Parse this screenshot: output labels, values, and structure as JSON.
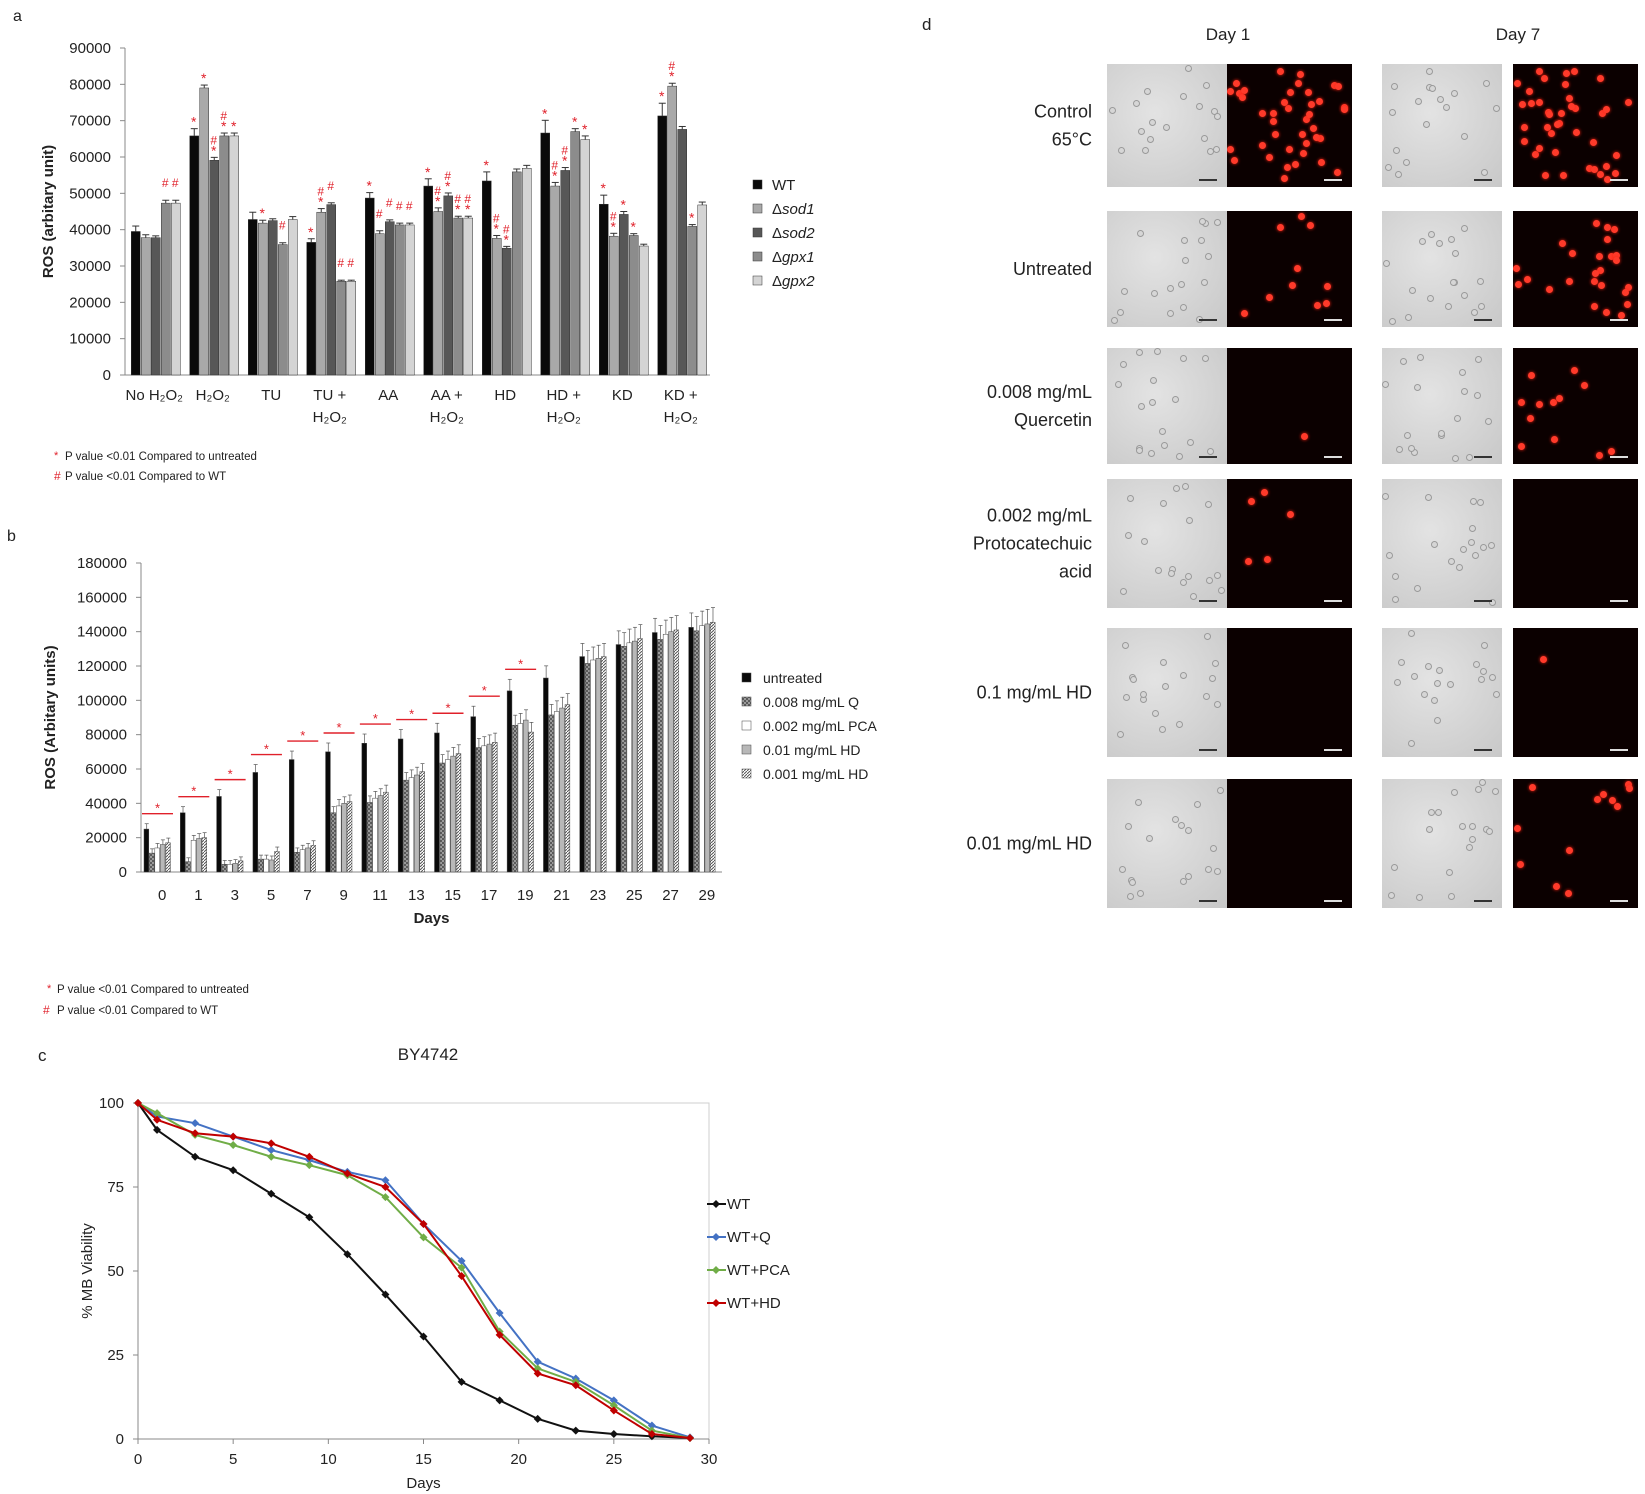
{
  "panels": {
    "a": {
      "letter": "a",
      "ylabel": "ROS (arbitary unit)",
      "yticks": [
        "0",
        "10000",
        "20000",
        "30000",
        "40000",
        "50000",
        "60000",
        "70000",
        "80000",
        "90000"
      ],
      "ylim": [
        0,
        90000
      ],
      "groups": [
        "No H₂O₂",
        "H₂O₂",
        "TU",
        "TU +\nH₂O₂",
        "AA",
        "AA +\nH₂O₂",
        "HD",
        "HD +\nH₂O₂",
        "KD",
        "KD +\nH₂O₂"
      ],
      "legend": [
        {
          "prefix": "",
          "name": "WT",
          "italic": false
        },
        {
          "prefix": "Δ",
          "name": "sod1",
          "italic": true
        },
        {
          "prefix": "Δ",
          "name": "sod2",
          "italic": true
        },
        {
          "prefix": "Δ",
          "name": "gpx1",
          "italic": true
        },
        {
          "prefix": "Δ",
          "name": "gpx2",
          "italic": true
        }
      ],
      "footnote_star": "P value <0.01 Compared to untreated",
      "footnote_hash": "P value <0.01 Compared to WT"
    },
    "b": {
      "letter": "b",
      "ylabel": "ROS (Arbitary units)",
      "xlabel": "Days",
      "yticks": [
        "0",
        "20000",
        "40000",
        "60000",
        "80000",
        "100000",
        "120000",
        "140000",
        "160000",
        "180000"
      ],
      "ylim": [
        0,
        180000
      ],
      "legend": [
        "untreated",
        "0.008 mg/mL  Q",
        "0.002 mg/mL  PCA",
        "0.01 mg/mL   HD",
        "0.001 mg/mL  HD"
      ],
      "footnote_star": "P value <0.01 Compared to untreated",
      "footnote_hash": "P value <0.01 Compared to WT"
    },
    "c": {
      "letter": "c",
      "title": "BY4742",
      "ylabel": "% MB Viability",
      "xlabel": "Days",
      "xticks": [
        "0",
        "5",
        "10",
        "15",
        "20",
        "25",
        "30"
      ],
      "yticks": [
        "0",
        "25",
        "50",
        "75",
        "100"
      ]
    },
    "d": {
      "letter": "d",
      "col_headers": [
        "Day 1",
        "Day 7"
      ],
      "row_labels": [
        [
          "Control",
          "65°C"
        ],
        [
          "Untreated"
        ],
        [
          "0.008 mg/mL",
          "Quercetin"
        ],
        [
          "0.002 mg/mL",
          "Protocatechuic",
          "acid"
        ],
        [
          "0.1 mg/mL  HD"
        ],
        [
          "0.01 mg/mL  HD"
        ]
      ],
      "fluor_dots_day1": [
        40,
        10,
        1,
        5,
        0,
        0
      ],
      "fluor_dots_day7": [
        40,
        25,
        12,
        0,
        1,
        12
      ]
    }
  },
  "chart_data": [
    {
      "panel": "a",
      "type": "bar",
      "categories": [
        "No H₂O₂",
        "H₂O₂",
        "TU",
        "TU + H₂O₂",
        "AA",
        "AA + H₂O₂",
        "HD",
        "HD + H₂O₂",
        "KD",
        "KD + H₂O₂"
      ],
      "ylabel": "ROS (arbitary unit)",
      "ylim": [
        0,
        90000
      ],
      "series": [
        {
          "name": "WT",
          "color": "#0a0a0a",
          "values": [
            39500,
            65800,
            42800,
            36500,
            48700,
            52000,
            53400,
            66600,
            47000,
            71300
          ],
          "errors": [
            1500,
            2000,
            2000,
            1000,
            1500,
            2000,
            2500,
            3500,
            2500,
            3500
          ]
        },
        {
          "name": "Δsod1",
          "color": "#a9a9a9",
          "values": [
            37800,
            79000,
            41800,
            44800,
            38900,
            45000,
            37600,
            52000,
            38200,
            79500
          ],
          "errors": [
            800,
            800,
            800,
            1000,
            800,
            1000,
            800,
            1000,
            800,
            800
          ]
        },
        {
          "name": "Δsod2",
          "color": "#575757",
          "values": [
            37800,
            59100,
            42500,
            46900,
            42200,
            49300,
            34900,
            56300,
            44200,
            67600
          ],
          "errors": [
            500,
            800,
            500,
            500,
            500,
            800,
            500,
            800,
            800,
            800
          ]
        },
        {
          "name": "Δgpx1",
          "color": "#8c8c8c",
          "values": [
            47300,
            65800,
            35900,
            25800,
            41300,
            43200,
            55900,
            67000,
            38400,
            40900
          ],
          "errors": [
            800,
            800,
            500,
            300,
            500,
            500,
            800,
            800,
            500,
            500
          ]
        },
        {
          "name": "Δgpx2",
          "color": "#d4d4d4",
          "values": [
            47300,
            65800,
            42800,
            25800,
            41300,
            43200,
            56900,
            64800,
            35500,
            46800
          ],
          "errors": [
            800,
            800,
            800,
            300,
            500,
            500,
            800,
            1000,
            500,
            800
          ]
        }
      ],
      "annotations": {
        "star": [
          [],
          [
            0,
            1,
            2,
            3,
            4
          ],
          [
            1
          ],
          [
            0,
            1
          ],
          [
            0
          ],
          [
            0,
            1,
            2,
            3,
            4
          ],
          [
            0,
            1,
            2
          ],
          [
            0,
            1,
            2,
            3,
            4
          ],
          [
            0,
            1,
            2,
            3
          ],
          [
            0,
            1,
            3
          ]
        ],
        "hash": [
          [
            3,
            4
          ],
          [
            2,
            3
          ],
          [
            3
          ],
          [
            1,
            2,
            3,
            4
          ],
          [
            1,
            2,
            3,
            4
          ],
          [
            1,
            2,
            3,
            4
          ],
          [
            1,
            2
          ],
          [
            1,
            2
          ],
          [
            1
          ],
          [
            1
          ]
        ]
      }
    },
    {
      "panel": "b",
      "type": "bar",
      "categories": [
        "0",
        "1",
        "3",
        "5",
        "7",
        "9",
        "11",
        "13",
        "15",
        "17",
        "19",
        "21",
        "23",
        "25",
        "27",
        "29"
      ],
      "xlabel": "Days",
      "ylabel": "ROS (Arbitary units)",
      "ylim": [
        0,
        180000
      ],
      "series": [
        {
          "name": "untreated",
          "values": [
            25000,
            34500,
            44000,
            58000,
            65500,
            70000,
            75000,
            77500,
            81000,
            90500,
            105500,
            113000,
            125500,
            132500,
            139500,
            142500
          ]
        },
        {
          "name": "0.008 mg/mL  Q",
          "values": [
            11000,
            6000,
            4500,
            7500,
            11500,
            34500,
            40500,
            53500,
            63500,
            72500,
            85500,
            91500,
            121500,
            131500,
            135500,
            140500
          ]
        },
        {
          "name": "0.002 mg/mL  PCA",
          "values": [
            14000,
            18500,
            4500,
            7500,
            13000,
            38500,
            43000,
            55000,
            65500,
            73500,
            86500,
            93500,
            123500,
            133500,
            138500,
            143500
          ]
        },
        {
          "name": "0.01 mg/mL   HD",
          "values": [
            16000,
            19500,
            5000,
            7000,
            14000,
            40000,
            44500,
            56500,
            67500,
            74500,
            88500,
            95500,
            124500,
            134500,
            140000,
            144500
          ]
        },
        {
          "name": "0.001 mg/mL  HD",
          "values": [
            17000,
            20000,
            6500,
            12000,
            15500,
            41000,
            46500,
            58500,
            69000,
            75500,
            81500,
            97500,
            125500,
            136000,
            141000,
            145500
          ]
        }
      ],
      "significant_days": [
        "0",
        "1",
        "3",
        "5",
        "7",
        "9",
        "11",
        "13",
        "15",
        "17",
        "19"
      ]
    },
    {
      "panel": "c",
      "type": "line",
      "title": "BY4742",
      "xlabel": "Days",
      "ylabel": "% MB Viability",
      "xlim": [
        0,
        30
      ],
      "ylim": [
        0,
        100
      ],
      "x": [
        0,
        1,
        3,
        5,
        7,
        9,
        11,
        13,
        15,
        17,
        19,
        21,
        23,
        25,
        27,
        29
      ],
      "series": [
        {
          "name": "WT",
          "color": "#111111",
          "values": [
            100,
            92,
            84,
            80,
            73,
            66,
            55,
            43,
            30.5,
            17,
            11.5,
            6,
            2.5,
            1.5,
            0.8,
            0.3
          ]
        },
        {
          "name": "WT+Q",
          "color": "#4472c4",
          "values": [
            100,
            96,
            94,
            90,
            86,
            83,
            79.5,
            77,
            64,
            53,
            37.5,
            23,
            18,
            11.5,
            4,
            0.5
          ]
        },
        {
          "name": "WT+PCA",
          "color": "#70ad47",
          "values": [
            100,
            97,
            90.5,
            87.5,
            84,
            81.5,
            78.5,
            72,
            60,
            51,
            32,
            21,
            17,
            10,
            2.5,
            0.3
          ]
        },
        {
          "name": "WT+HD",
          "color": "#c00000",
          "values": [
            100,
            95,
            91,
            90,
            88,
            84,
            79,
            75,
            64,
            48.5,
            31,
            19.5,
            16,
            8.5,
            1.5,
            0.3
          ]
        }
      ]
    }
  ]
}
